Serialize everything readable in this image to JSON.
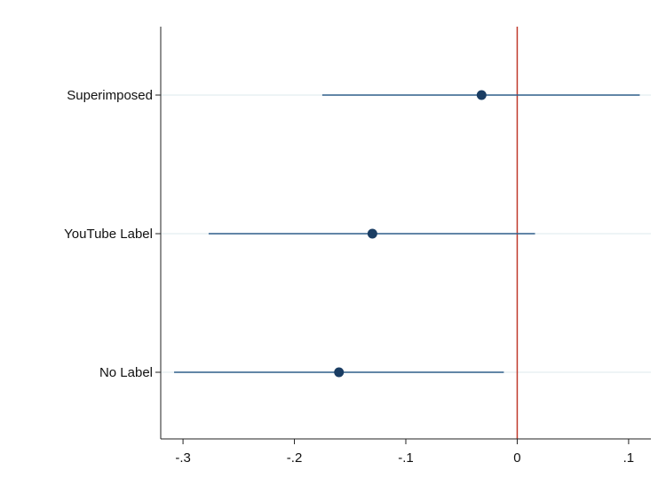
{
  "chart_data": {
    "type": "scatter",
    "subtype": "coefficient-plot-with-confidence-intervals",
    "title": "",
    "xlabel": "",
    "ylabel": "",
    "categories": [
      "Superimposed",
      "YouTube Label",
      "No Label"
    ],
    "points": [
      {
        "label": "Superimposed",
        "estimate": -0.032,
        "ci_low": -0.175,
        "ci_high": 0.11
      },
      {
        "label": "YouTube Label",
        "estimate": -0.13,
        "ci_low": -0.277,
        "ci_high": 0.016
      },
      {
        "label": "No Label",
        "estimate": -0.16,
        "ci_low": -0.308,
        "ci_high": -0.012
      }
    ],
    "xlim": [
      -0.32,
      0.12
    ],
    "xticks": [
      -0.3,
      -0.2,
      -0.1,
      0,
      0.1
    ],
    "xtick_labels": [
      "-.3",
      "-.2",
      "-.1",
      "0",
      ".1"
    ],
    "reference_line": {
      "x": 0,
      "color": "#c0392b"
    },
    "horizontal_gridlines": true,
    "colors": {
      "marker": "#1a3d63",
      "ci_line": "#2f5f8a",
      "gridline": "#dde8ee",
      "axis": "#222222"
    }
  }
}
